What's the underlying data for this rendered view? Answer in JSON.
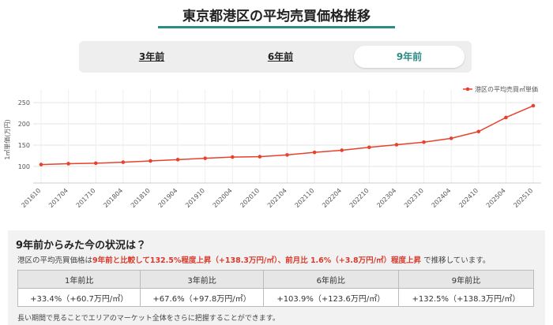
{
  "header": {
    "title": "東京都港区の平均売買価格推移"
  },
  "tabs": {
    "items": [
      "3年前",
      "6年前",
      "9年前"
    ],
    "active": 2
  },
  "chart_data": {
    "type": "line",
    "y_label": "1㎡単価(万円)",
    "categories": [
      "201610",
      "201704",
      "201710",
      "201804",
      "201810",
      "201904",
      "201910",
      "202004",
      "202010",
      "202104",
      "202110",
      "202204",
      "202210",
      "202304",
      "202310",
      "202404",
      "202410",
      "202504",
      "202510"
    ],
    "series": [
      {
        "name": "港区の平均売買㎡単価",
        "color": "#e8412c",
        "values": [
          104.4,
          106.5,
          107.5,
          110,
          113,
          116,
          119.1,
          122,
          123,
          127,
          133,
          138,
          144.9,
          151,
          157,
          166,
          182,
          215,
          242.7
        ]
      }
    ],
    "ylim": [
      61,
      265
    ],
    "yticks": [
      100,
      150,
      200,
      250
    ],
    "grid": true,
    "legend": "top-right"
  },
  "summary": {
    "heading": "9年前からみた今の状況は？",
    "segments": [
      {
        "text": "港区の平均売買価格は",
        "emphasis": false
      },
      {
        "text": "9年前と比較して132.5%程度上昇（+138.3万円/㎡）、前月比 1.6%（+3.8万円/㎡）程度上昇",
        "emphasis": true
      },
      {
        "text": " で推移しています。",
        "emphasis": false
      }
    ]
  },
  "table": {
    "headers": [
      "1年前比",
      "3年前比",
      "6年前比",
      "9年前比"
    ],
    "rows": [
      [
        "+33.4%（+60.7万円/㎡）",
        "+67.6%（+97.8万円/㎡）",
        "+103.9%（+123.6万円/㎡）",
        "+132.5%（+138.3万円/㎡）"
      ]
    ]
  },
  "note": "長い期間で見ることでエリアのマーケット全体をさらに把握することができます。"
}
